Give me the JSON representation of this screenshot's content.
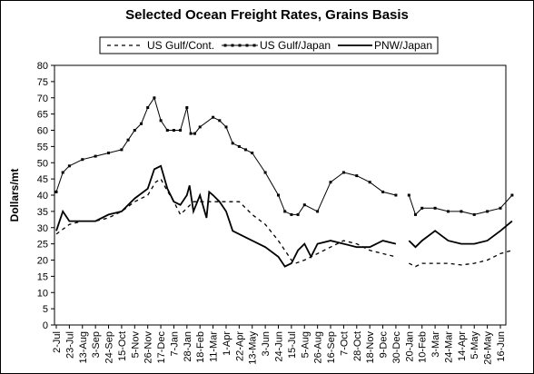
{
  "chart_data": {
    "type": "line",
    "title": "Selected Ocean Freight Rates, Grains Basis",
    "ylabel": "Dollars/mt",
    "xlabel": "",
    "ylim": [
      0,
      80
    ],
    "ytick_step": 5,
    "grid": false,
    "legend_position": "top",
    "categories": [
      "2-Jul",
      "23-Jul",
      "13-Aug",
      "3-Sep",
      "24-Sep",
      "15-Oct",
      "5-Nov",
      "26-Nov",
      "17-Dec",
      "7-Jan",
      "28-Jan",
      "18-Feb",
      "11-Mar",
      "1-Apr",
      "22-Apr",
      "13-May",
      "3-Jun",
      "24-Jun",
      "15-Jul",
      "5-Aug",
      "26-Aug",
      "16-Sep",
      "7-Oct",
      "28-Oct",
      "18-Nov",
      "9-Dec",
      "30-Dec",
      "20-Jan",
      "10-Feb",
      "3-Mar",
      "24-Mar",
      "14-Apr",
      "5-May",
      "26-May",
      "16-Jun"
    ],
    "series": [
      {
        "name": "US Gulf/Cont.",
        "color": "#000000",
        "style": "dashed",
        "x": [
          0,
          1,
          2,
          3,
          4,
          5,
          6,
          7,
          7.6,
          8,
          8.4,
          9,
          9.5,
          10,
          10.5,
          11,
          12,
          13,
          14,
          15,
          16,
          17,
          18,
          18.3,
          19,
          20,
          21,
          22,
          23,
          24,
          25,
          26,
          26.3,
          27,
          27.5,
          28,
          30,
          31,
          32,
          33,
          34,
          34.9
        ],
        "values": [
          28,
          31,
          32,
          32,
          33,
          35,
          38,
          40,
          44,
          45,
          42,
          38,
          34,
          36,
          38,
          38,
          38,
          38,
          38,
          34,
          31,
          26,
          20,
          19,
          20,
          22,
          24,
          26,
          25,
          23,
          22,
          21,
          null,
          19,
          18,
          19,
          19,
          18.5,
          19,
          20,
          22,
          23
        ]
      },
      {
        "name": "US Gulf/Japan",
        "color": "#000000",
        "style": "markers",
        "x": [
          0,
          0.5,
          1,
          2,
          3,
          4,
          5,
          5.5,
          6,
          6.5,
          7,
          7.5,
          8,
          8.5,
          9,
          9.5,
          10,
          10.3,
          10.6,
          11,
          12,
          12.5,
          13,
          13.5,
          14,
          14.5,
          15,
          16,
          17,
          17.5,
          18,
          18.5,
          19,
          20,
          21,
          22,
          23,
          24,
          25,
          26,
          26.3,
          27,
          27.5,
          28,
          29,
          30,
          31,
          32,
          33,
          34,
          34.9
        ],
        "values": [
          41,
          47,
          49,
          51,
          52,
          53,
          54,
          57,
          60,
          62,
          67,
          70,
          63,
          60,
          60,
          60,
          67,
          59,
          59,
          61,
          64,
          63,
          61,
          56,
          55,
          54,
          53,
          47,
          40,
          35,
          34,
          34,
          37,
          35,
          44,
          47,
          46,
          44,
          41,
          40,
          null,
          40,
          34,
          36,
          36,
          35,
          35,
          34,
          35,
          36,
          40
        ]
      },
      {
        "name": "PNW/Japan",
        "color": "#000000",
        "style": "solid",
        "x": [
          0,
          0.5,
          1,
          2,
          3,
          4,
          5,
          6,
          7,
          7.5,
          8,
          8.5,
          9,
          9.5,
          10,
          10.2,
          10.5,
          11,
          11.5,
          11.7,
          12,
          12.5,
          13,
          13.5,
          14,
          15,
          16,
          17,
          17.5,
          18,
          18.5,
          19,
          19.5,
          20,
          21,
          22,
          23,
          24,
          25,
          26,
          26.3,
          27,
          27.5,
          28,
          29,
          30,
          31,
          32,
          33,
          34,
          34.9
        ],
        "values": [
          29,
          35,
          32,
          32,
          32,
          34,
          35,
          39,
          42,
          48,
          49,
          42,
          38,
          37,
          40,
          43,
          35,
          40,
          33,
          41,
          40,
          38,
          35,
          29,
          28,
          26,
          24,
          21,
          18,
          19,
          23,
          25,
          21,
          25,
          26,
          25,
          24,
          24,
          26,
          25,
          null,
          26,
          24,
          26,
          29,
          26,
          25,
          25,
          26,
          29,
          32
        ]
      }
    ]
  }
}
